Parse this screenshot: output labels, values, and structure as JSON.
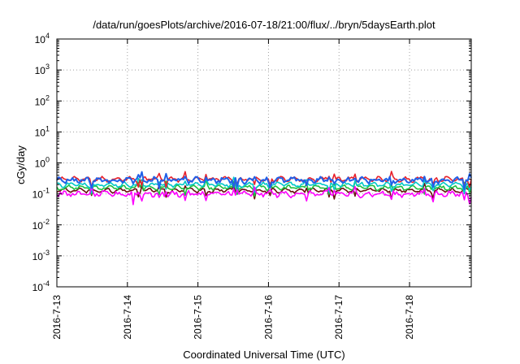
{
  "chart_data": {
    "type": "line",
    "title": "/data/run/goesPlots/archive/2016-07-18/21:00/flux/../bryn/5daysEarth.plot",
    "xlabel": "Coordinated Universal Time (UTC)",
    "ylabel": "cGy/day",
    "y_scale": "log",
    "ylim": [
      0.0001,
      10000
    ],
    "xlim": [
      "2016-07-13",
      "2016-07-18 21:00"
    ],
    "x_ticks": [
      "2016-7-13",
      "2016-7-14",
      "2016-7-15",
      "2016-7-16",
      "2016-7-17",
      "2016-7-18"
    ],
    "y_ticks": [
      {
        "base": "10",
        "exp": "-4"
      },
      {
        "base": "10",
        "exp": "-3"
      },
      {
        "base": "10",
        "exp": "-2"
      },
      {
        "base": "10",
        "exp": "-1"
      },
      {
        "base": "10",
        "exp": "0"
      },
      {
        "base": "10",
        "exp": "1"
      },
      {
        "base": "10",
        "exp": "2"
      },
      {
        "base": "10",
        "exp": "3"
      },
      {
        "base": "10",
        "exp": "4"
      }
    ],
    "grid": true,
    "series": [
      {
        "color": "#e8202a",
        "approx_level": 0.3,
        "spread": 0.22
      },
      {
        "color": "#2060e8",
        "approx_level": 0.28,
        "spread": 0.3
      },
      {
        "color": "#00c8c8",
        "approx_level": 0.2,
        "spread": 0.22
      },
      {
        "color": "#20c040",
        "approx_level": 0.16,
        "spread": 0.2
      },
      {
        "color": "#6a1010",
        "approx_level": 0.13,
        "spread": 0.18
      },
      {
        "color": "#ff00ff",
        "approx_level": 0.1,
        "spread": 0.3
      }
    ]
  }
}
